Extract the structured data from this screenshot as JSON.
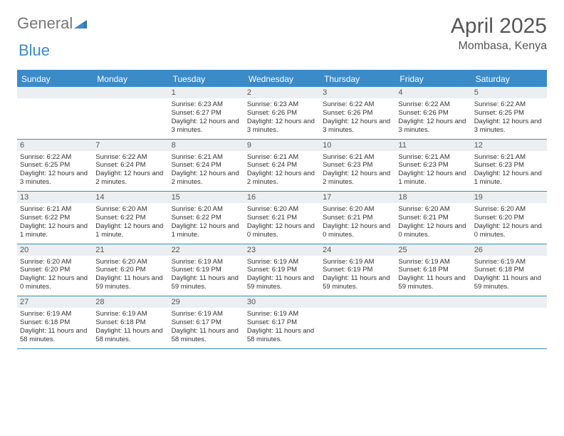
{
  "brand": {
    "part1": "General",
    "part2": "Blue"
  },
  "title": "April 2025",
  "location": "Mombasa, Kenya",
  "colors": {
    "accent": "#3b8bc9",
    "dayHeader": "#eceff1",
    "text": "#333333",
    "titleText": "#555555",
    "background": "#ffffff"
  },
  "daysOfWeek": [
    "Sunday",
    "Monday",
    "Tuesday",
    "Wednesday",
    "Thursday",
    "Friday",
    "Saturday"
  ],
  "weeks": [
    [
      null,
      null,
      {
        "n": "1",
        "sr": "Sunrise: 6:23 AM",
        "ss": "Sunset: 6:27 PM",
        "dl": "Daylight: 12 hours and 3 minutes."
      },
      {
        "n": "2",
        "sr": "Sunrise: 6:23 AM",
        "ss": "Sunset: 6:26 PM",
        "dl": "Daylight: 12 hours and 3 minutes."
      },
      {
        "n": "3",
        "sr": "Sunrise: 6:22 AM",
        "ss": "Sunset: 6:26 PM",
        "dl": "Daylight: 12 hours and 3 minutes."
      },
      {
        "n": "4",
        "sr": "Sunrise: 6:22 AM",
        "ss": "Sunset: 6:26 PM",
        "dl": "Daylight: 12 hours and 3 minutes."
      },
      {
        "n": "5",
        "sr": "Sunrise: 6:22 AM",
        "ss": "Sunset: 6:25 PM",
        "dl": "Daylight: 12 hours and 3 minutes."
      }
    ],
    [
      {
        "n": "6",
        "sr": "Sunrise: 6:22 AM",
        "ss": "Sunset: 6:25 PM",
        "dl": "Daylight: 12 hours and 3 minutes."
      },
      {
        "n": "7",
        "sr": "Sunrise: 6:22 AM",
        "ss": "Sunset: 6:24 PM",
        "dl": "Daylight: 12 hours and 2 minutes."
      },
      {
        "n": "8",
        "sr": "Sunrise: 6:21 AM",
        "ss": "Sunset: 6:24 PM",
        "dl": "Daylight: 12 hours and 2 minutes."
      },
      {
        "n": "9",
        "sr": "Sunrise: 6:21 AM",
        "ss": "Sunset: 6:24 PM",
        "dl": "Daylight: 12 hours and 2 minutes."
      },
      {
        "n": "10",
        "sr": "Sunrise: 6:21 AM",
        "ss": "Sunset: 6:23 PM",
        "dl": "Daylight: 12 hours and 2 minutes."
      },
      {
        "n": "11",
        "sr": "Sunrise: 6:21 AM",
        "ss": "Sunset: 6:23 PM",
        "dl": "Daylight: 12 hours and 1 minute."
      },
      {
        "n": "12",
        "sr": "Sunrise: 6:21 AM",
        "ss": "Sunset: 6:23 PM",
        "dl": "Daylight: 12 hours and 1 minute."
      }
    ],
    [
      {
        "n": "13",
        "sr": "Sunrise: 6:21 AM",
        "ss": "Sunset: 6:22 PM",
        "dl": "Daylight: 12 hours and 1 minute."
      },
      {
        "n": "14",
        "sr": "Sunrise: 6:20 AM",
        "ss": "Sunset: 6:22 PM",
        "dl": "Daylight: 12 hours and 1 minute."
      },
      {
        "n": "15",
        "sr": "Sunrise: 6:20 AM",
        "ss": "Sunset: 6:22 PM",
        "dl": "Daylight: 12 hours and 1 minute."
      },
      {
        "n": "16",
        "sr": "Sunrise: 6:20 AM",
        "ss": "Sunset: 6:21 PM",
        "dl": "Daylight: 12 hours and 0 minutes."
      },
      {
        "n": "17",
        "sr": "Sunrise: 6:20 AM",
        "ss": "Sunset: 6:21 PM",
        "dl": "Daylight: 12 hours and 0 minutes."
      },
      {
        "n": "18",
        "sr": "Sunrise: 6:20 AM",
        "ss": "Sunset: 6:21 PM",
        "dl": "Daylight: 12 hours and 0 minutes."
      },
      {
        "n": "19",
        "sr": "Sunrise: 6:20 AM",
        "ss": "Sunset: 6:20 PM",
        "dl": "Daylight: 12 hours and 0 minutes."
      }
    ],
    [
      {
        "n": "20",
        "sr": "Sunrise: 6:20 AM",
        "ss": "Sunset: 6:20 PM",
        "dl": "Daylight: 12 hours and 0 minutes."
      },
      {
        "n": "21",
        "sr": "Sunrise: 6:20 AM",
        "ss": "Sunset: 6:20 PM",
        "dl": "Daylight: 11 hours and 59 minutes."
      },
      {
        "n": "22",
        "sr": "Sunrise: 6:19 AM",
        "ss": "Sunset: 6:19 PM",
        "dl": "Daylight: 11 hours and 59 minutes."
      },
      {
        "n": "23",
        "sr": "Sunrise: 6:19 AM",
        "ss": "Sunset: 6:19 PM",
        "dl": "Daylight: 11 hours and 59 minutes."
      },
      {
        "n": "24",
        "sr": "Sunrise: 6:19 AM",
        "ss": "Sunset: 6:19 PM",
        "dl": "Daylight: 11 hours and 59 minutes."
      },
      {
        "n": "25",
        "sr": "Sunrise: 6:19 AM",
        "ss": "Sunset: 6:18 PM",
        "dl": "Daylight: 11 hours and 59 minutes."
      },
      {
        "n": "26",
        "sr": "Sunrise: 6:19 AM",
        "ss": "Sunset: 6:18 PM",
        "dl": "Daylight: 11 hours and 59 minutes."
      }
    ],
    [
      {
        "n": "27",
        "sr": "Sunrise: 6:19 AM",
        "ss": "Sunset: 6:18 PM",
        "dl": "Daylight: 11 hours and 58 minutes."
      },
      {
        "n": "28",
        "sr": "Sunrise: 6:19 AM",
        "ss": "Sunset: 6:18 PM",
        "dl": "Daylight: 11 hours and 58 minutes."
      },
      {
        "n": "29",
        "sr": "Sunrise: 6:19 AM",
        "ss": "Sunset: 6:17 PM",
        "dl": "Daylight: 11 hours and 58 minutes."
      },
      {
        "n": "30",
        "sr": "Sunrise: 6:19 AM",
        "ss": "Sunset: 6:17 PM",
        "dl": "Daylight: 11 hours and 58 minutes."
      },
      null,
      null,
      null
    ]
  ]
}
